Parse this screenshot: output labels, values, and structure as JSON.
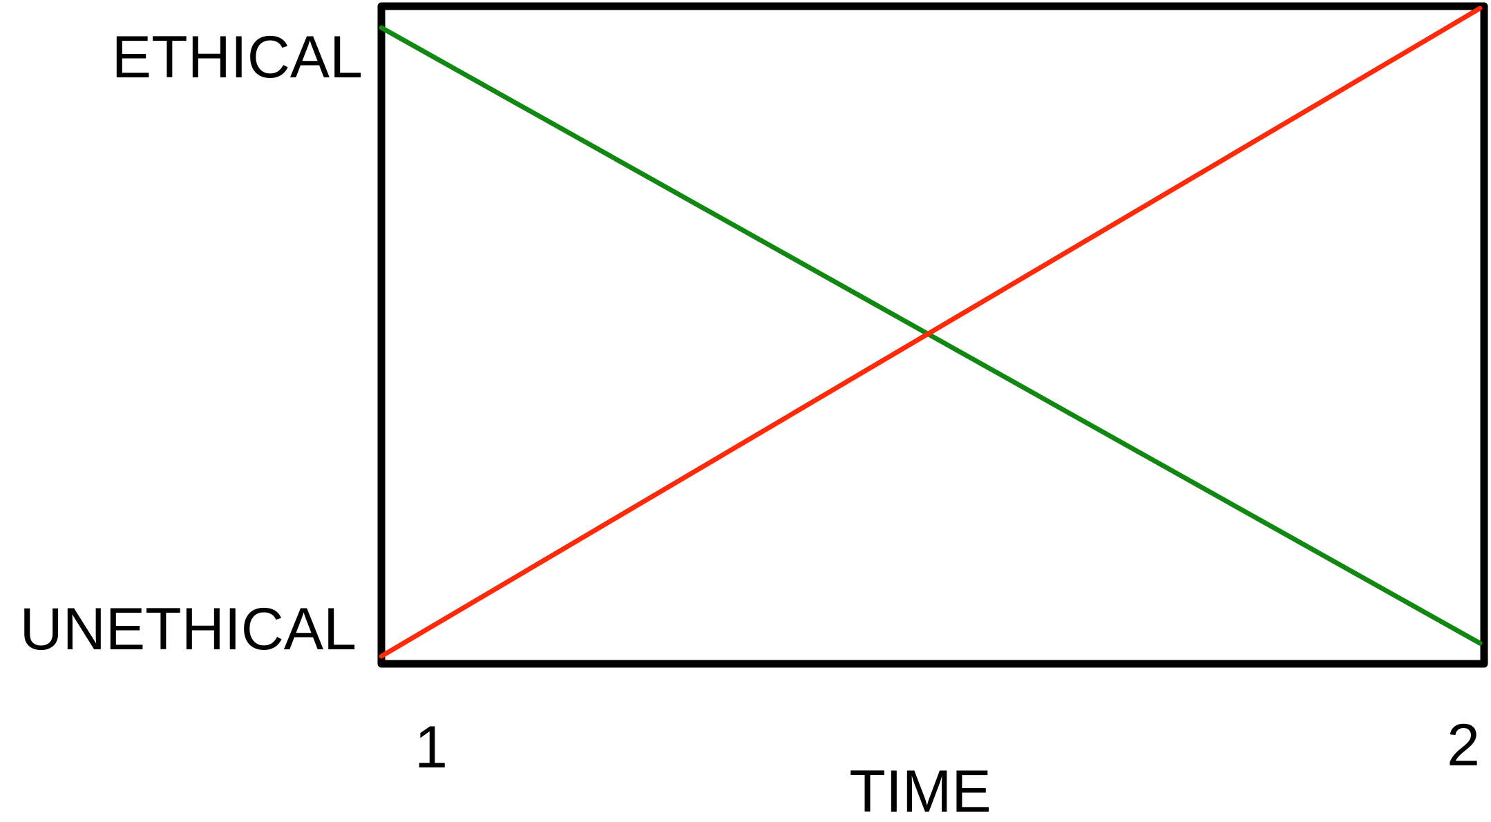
{
  "chart_data": {
    "type": "line",
    "title": "",
    "xlabel": "TIME",
    "ylabel": "",
    "x_ticks": [
      "1",
      "2"
    ],
    "y_ticks": [
      "UNETHICAL",
      "ETHICAL"
    ],
    "xlim": [
      1,
      2
    ],
    "ylim": [
      0,
      1
    ],
    "grid": false,
    "legend": "none",
    "series": [
      {
        "color": "#118811",
        "x": [
          1,
          2
        ],
        "y": [
          0.97,
          0.02
        ]
      },
      {
        "color": "#ff2a0a",
        "x": [
          1,
          2
        ],
        "y": [
          0.0,
          1.0
        ]
      }
    ]
  }
}
